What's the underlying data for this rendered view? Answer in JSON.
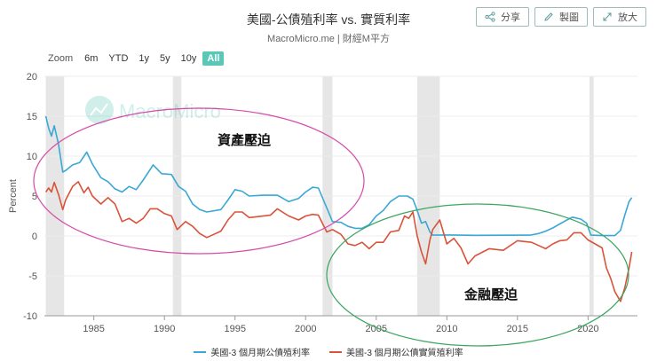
{
  "header": {
    "title": "美國-公債殖利率 vs. 實質利率",
    "subtitle": "MacroMicro.me | 財經M平方"
  },
  "toolbar": {
    "share_label": "分享",
    "draw_label": "製圖",
    "enlarge_label": "放大"
  },
  "zoom": {
    "label": "Zoom",
    "options": [
      "6m",
      "YTD",
      "1y",
      "5y",
      "10y",
      "All"
    ],
    "selected": "All"
  },
  "watermark": "MacroMicro",
  "annotations": {
    "top": "資產壓迫",
    "bottom": "金融壓迫"
  },
  "colors": {
    "nominal": "#3aa8d4",
    "real": "#d9533a",
    "ellipse_top": "#d64ba8",
    "ellipse_bottom": "#3aa660",
    "recession": "#e6e6e6"
  },
  "chart_data": {
    "type": "line",
    "ylabel": "Percent",
    "xlim": [
      1981.5,
      2023.5
    ],
    "ylim": [
      -10,
      20
    ],
    "yticks": [
      20,
      15,
      10,
      5,
      0,
      -5,
      -10
    ],
    "xticks": [
      1985,
      1990,
      1995,
      2000,
      2005,
      2010,
      2015,
      2020
    ],
    "recessions": [
      [
        1981.6,
        1982.9
      ],
      [
        1990.6,
        1991.2
      ],
      [
        2001.2,
        2001.9
      ],
      [
        2007.9,
        2009.5
      ],
      [
        2020.1,
        2020.4
      ]
    ],
    "series": [
      {
        "name": "美國-3 個月期公債殖利率",
        "key": "nominal",
        "points": [
          [
            1981.6,
            15.0
          ],
          [
            1981.8,
            13.5
          ],
          [
            1982.0,
            12.5
          ],
          [
            1982.2,
            13.8
          ],
          [
            1982.5,
            11.5
          ],
          [
            1982.8,
            8.0
          ],
          [
            1983.0,
            8.2
          ],
          [
            1983.5,
            8.9
          ],
          [
            1984.0,
            9.2
          ],
          [
            1984.5,
            10.5
          ],
          [
            1984.9,
            9.0
          ],
          [
            1985.5,
            7.3
          ],
          [
            1986.0,
            6.8
          ],
          [
            1986.5,
            5.9
          ],
          [
            1987.0,
            5.5
          ],
          [
            1987.5,
            6.2
          ],
          [
            1988.0,
            5.8
          ],
          [
            1988.5,
            7.0
          ],
          [
            1989.2,
            8.9
          ],
          [
            1989.8,
            7.8
          ],
          [
            1990.5,
            7.7
          ],
          [
            1991.0,
            6.2
          ],
          [
            1991.5,
            5.6
          ],
          [
            1992.0,
            4.0
          ],
          [
            1992.5,
            3.3
          ],
          [
            1993.0,
            3.0
          ],
          [
            1994.0,
            3.3
          ],
          [
            1994.5,
            4.5
          ],
          [
            1995.0,
            5.8
          ],
          [
            1995.5,
            5.6
          ],
          [
            1996.0,
            5.0
          ],
          [
            1997.0,
            5.1
          ],
          [
            1998.0,
            5.1
          ],
          [
            1998.8,
            4.3
          ],
          [
            1999.5,
            4.7
          ],
          [
            2000.0,
            5.5
          ],
          [
            2000.5,
            6.1
          ],
          [
            2000.9,
            6.0
          ],
          [
            2001.5,
            3.5
          ],
          [
            2001.9,
            1.8
          ],
          [
            2002.5,
            1.7
          ],
          [
            2003.0,
            1.2
          ],
          [
            2003.5,
            0.95
          ],
          [
            2004.0,
            0.95
          ],
          [
            2004.5,
            1.4
          ],
          [
            2005.0,
            2.5
          ],
          [
            2005.5,
            3.2
          ],
          [
            2006.0,
            4.3
          ],
          [
            2006.6,
            5.0
          ],
          [
            2007.2,
            5.0
          ],
          [
            2007.6,
            4.6
          ],
          [
            2007.9,
            3.2
          ],
          [
            2008.2,
            1.6
          ],
          [
            2008.5,
            1.8
          ],
          [
            2008.8,
            0.5
          ],
          [
            2009.0,
            0.1
          ],
          [
            2010.0,
            0.12
          ],
          [
            2012.0,
            0.08
          ],
          [
            2015.9,
            0.1
          ],
          [
            2016.5,
            0.3
          ],
          [
            2017.0,
            0.6
          ],
          [
            2017.5,
            1.0
          ],
          [
            2018.0,
            1.5
          ],
          [
            2018.5,
            2.0
          ],
          [
            2018.9,
            2.35
          ],
          [
            2019.5,
            2.1
          ],
          [
            2019.9,
            1.6
          ],
          [
            2020.2,
            0.1
          ],
          [
            2021.0,
            0.05
          ],
          [
            2021.9,
            0.05
          ],
          [
            2022.3,
            0.7
          ],
          [
            2022.6,
            2.6
          ],
          [
            2022.9,
            4.3
          ],
          [
            2023.1,
            4.8
          ]
        ]
      },
      {
        "name": "美國-3 個月期公債實質殖利率",
        "key": "real",
        "points": [
          [
            1981.6,
            5.5
          ],
          [
            1981.8,
            6.0
          ],
          [
            1982.0,
            5.5
          ],
          [
            1982.2,
            6.7
          ],
          [
            1982.5,
            5.2
          ],
          [
            1982.8,
            3.3
          ],
          [
            1983.0,
            4.5
          ],
          [
            1983.5,
            6.2
          ],
          [
            1983.9,
            6.8
          ],
          [
            1984.3,
            5.4
          ],
          [
            1984.6,
            6.1
          ],
          [
            1984.9,
            5.0
          ],
          [
            1985.5,
            4.0
          ],
          [
            1986.0,
            4.8
          ],
          [
            1986.5,
            4.0
          ],
          [
            1987.0,
            1.8
          ],
          [
            1987.5,
            2.2
          ],
          [
            1988.0,
            1.6
          ],
          [
            1988.5,
            2.2
          ],
          [
            1989.0,
            3.4
          ],
          [
            1989.5,
            3.4
          ],
          [
            1990.0,
            2.8
          ],
          [
            1990.5,
            2.5
          ],
          [
            1990.9,
            0.8
          ],
          [
            1991.5,
            1.8
          ],
          [
            1992.0,
            1.2
          ],
          [
            1992.5,
            0.3
          ],
          [
            1993.0,
            -0.2
          ],
          [
            1993.5,
            0.2
          ],
          [
            1994.0,
            0.6
          ],
          [
            1994.5,
            2.0
          ],
          [
            1995.0,
            3.0
          ],
          [
            1995.5,
            3.0
          ],
          [
            1996.0,
            2.3
          ],
          [
            1996.5,
            2.4
          ],
          [
            1997.5,
            2.6
          ],
          [
            1998.0,
            3.4
          ],
          [
            1998.8,
            2.5
          ],
          [
            1999.5,
            2.0
          ],
          [
            2000.0,
            2.5
          ],
          [
            2000.5,
            2.7
          ],
          [
            2000.9,
            2.6
          ],
          [
            2001.5,
            0.5
          ],
          [
            2001.9,
            0.8
          ],
          [
            2002.5,
            0.2
          ],
          [
            2003.0,
            -1.0
          ],
          [
            2003.5,
            -1.2
          ],
          [
            2004.0,
            -0.8
          ],
          [
            2004.5,
            -1.6
          ],
          [
            2005.0,
            -0.8
          ],
          [
            2005.5,
            -0.8
          ],
          [
            2006.0,
            0.5
          ],
          [
            2006.6,
            0.7
          ],
          [
            2007.0,
            2.5
          ],
          [
            2007.3,
            2.2
          ],
          [
            2007.6,
            3.0
          ],
          [
            2007.9,
            0.0
          ],
          [
            2008.2,
            -2.0
          ],
          [
            2008.5,
            -3.5
          ],
          [
            2008.8,
            -0.5
          ],
          [
            2009.0,
            0.8
          ],
          [
            2009.5,
            2.0
          ],
          [
            2010.0,
            -1.0
          ],
          [
            2010.5,
            -0.3
          ],
          [
            2011.0,
            -1.5
          ],
          [
            2011.5,
            -3.5
          ],
          [
            2012.0,
            -2.5
          ],
          [
            2013.0,
            -1.6
          ],
          [
            2014.0,
            -1.8
          ],
          [
            2015.0,
            -0.6
          ],
          [
            2016.0,
            -0.8
          ],
          [
            2016.5,
            -1.2
          ],
          [
            2017.0,
            -1.6
          ],
          [
            2017.5,
            -1.0
          ],
          [
            2018.0,
            -0.6
          ],
          [
            2018.5,
            -0.5
          ],
          [
            2019.0,
            0.4
          ],
          [
            2019.5,
            0.4
          ],
          [
            2020.0,
            -0.5
          ],
          [
            2020.5,
            -1.0
          ],
          [
            2021.0,
            -1.5
          ],
          [
            2021.3,
            -4.0
          ],
          [
            2021.6,
            -5.3
          ],
          [
            2021.9,
            -7.0
          ],
          [
            2022.3,
            -8.2
          ],
          [
            2022.6,
            -6.5
          ],
          [
            2022.9,
            -4.0
          ],
          [
            2023.1,
            -2.0
          ]
        ]
      }
    ]
  }
}
